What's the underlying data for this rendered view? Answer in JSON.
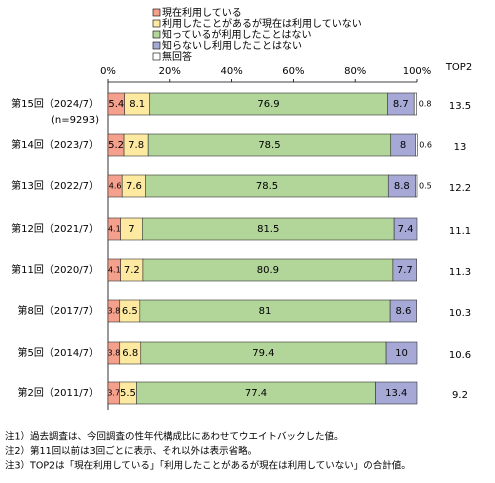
{
  "chart_data": {
    "type": "stacked-bar-horizontal",
    "categories": [
      "第15回（2024/7）",
      "第14回（2023/7）",
      "第13回（2022/7）",
      "第12回（2021/7）",
      "第11回（2020/7）",
      "第8回（2017/7）",
      "第5回（2014/7）",
      "第2回（2011/7）"
    ],
    "first_category_note": "(n=9293)",
    "series": [
      {
        "name": "現在利用している",
        "color": "#f4a08c",
        "values": [
          5.4,
          5.2,
          4.6,
          4.1,
          4.1,
          3.8,
          3.8,
          3.7
        ]
      },
      {
        "name": "利用したことがあるが現在は利用していない",
        "color": "#fde9a0",
        "values": [
          8.1,
          7.8,
          7.6,
          7.0,
          7.2,
          6.5,
          6.8,
          5.5
        ]
      },
      {
        "name": "知っているが利用したことはない",
        "color": "#b2d59a",
        "values": [
          76.9,
          78.5,
          78.5,
          81.5,
          80.9,
          81.0,
          79.4,
          77.4
        ]
      },
      {
        "name": "知らないし利用したことはない",
        "color": "#a6a9d6",
        "values": [
          8.7,
          8.0,
          8.8,
          7.4,
          7.7,
          8.6,
          10.0,
          13.4
        ]
      },
      {
        "name": "無回答",
        "color": "#ffffff",
        "values": [
          0.8,
          0.6,
          0.5,
          null,
          null,
          null,
          null,
          null
        ]
      }
    ],
    "top2_label": "TOP2",
    "top2": [
      13.5,
      13.0,
      12.2,
      11.1,
      11.3,
      10.3,
      10.6,
      9.2
    ],
    "xlim": [
      0,
      100
    ],
    "xticks": [
      {
        "value": 0,
        "label": "0%"
      },
      {
        "value": 20,
        "label": "20%"
      },
      {
        "value": 40,
        "label": "40%"
      },
      {
        "value": 60,
        "label": "60%"
      },
      {
        "value": 80,
        "label": "80%"
      },
      {
        "value": 100,
        "label": "100%"
      }
    ],
    "notes": [
      "注1）過去調査は、今回調査の性年代構成比にあわせてウエイトバックした値。",
      "注2）第11回以前は3回ごとに表示、それ以外は表示省略。",
      "注3）TOP2は「現在利用している」「利用したことがあるが現在は利用していない」の合計値。"
    ]
  }
}
